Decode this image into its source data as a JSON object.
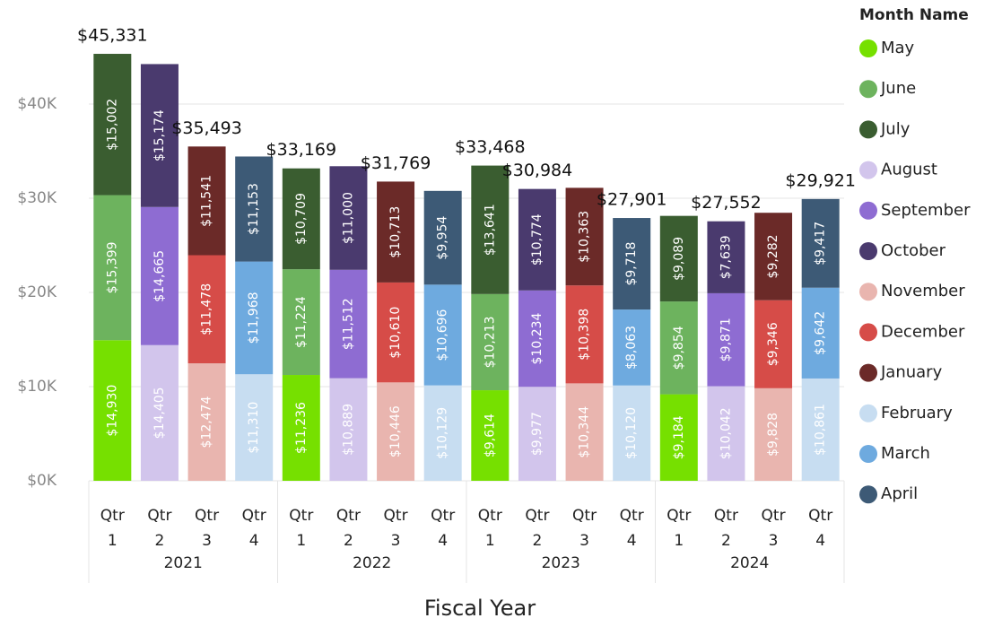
{
  "chart_data": {
    "type": "bar",
    "stacked": true,
    "x_label": "Fiscal Year",
    "legend_title": "Month Name",
    "legend": "right",
    "categories": [
      "Qtr 1",
      "Qtr 2",
      "Qtr 3",
      "Qtr 4",
      "Qtr 1",
      "Qtr 2",
      "Qtr 3",
      "Qtr 4",
      "Qtr 1",
      "Qtr 2",
      "Qtr 3",
      "Qtr 4",
      "Qtr 1",
      "Qtr 2",
      "Qtr 3",
      "Qtr 4"
    ],
    "category_groups": [
      "2021",
      "2022",
      "2023",
      "2024"
    ],
    "ylim": [
      0,
      48000
    ],
    "yticks": [
      {
        "value": 0,
        "label": "$0K"
      },
      {
        "value": 10000,
        "label": "$10K"
      },
      {
        "value": 20000,
        "label": "$20K"
      },
      {
        "value": 30000,
        "label": "$30K"
      },
      {
        "value": 40000,
        "label": "$40K"
      }
    ],
    "grid": true,
    "series": [
      {
        "name": "May",
        "color": "#76e000",
        "values": [
          14930,
          null,
          null,
          null,
          11236,
          null,
          null,
          null,
          9614,
          null,
          null,
          null,
          9184,
          null,
          null,
          null
        ],
        "value_labels": [
          "$14,930",
          null,
          null,
          null,
          "$11,236",
          null,
          null,
          null,
          "$9,614",
          null,
          null,
          null,
          "$9,184",
          null,
          null,
          null
        ]
      },
      {
        "name": "June",
        "color": "#6db35e",
        "values": [
          15399,
          null,
          null,
          null,
          11224,
          null,
          null,
          null,
          10213,
          null,
          null,
          null,
          9854,
          null,
          null,
          null
        ],
        "value_labels": [
          "$15,399",
          null,
          null,
          null,
          "$11,224",
          null,
          null,
          null,
          "$10,213",
          null,
          null,
          null,
          "$9,854",
          null,
          null,
          null
        ]
      },
      {
        "name": "July",
        "color": "#3a5d30",
        "values": [
          15002,
          null,
          null,
          null,
          10709,
          null,
          null,
          null,
          13641,
          null,
          null,
          null,
          9089,
          null,
          null,
          null
        ],
        "value_labels": [
          "$15,002",
          null,
          null,
          null,
          "$10,709",
          null,
          null,
          null,
          "$13,641",
          null,
          null,
          null,
          "$9,089",
          null,
          null,
          null
        ]
      },
      {
        "name": "August",
        "color": "#d2c5ec",
        "values": [
          null,
          14405,
          null,
          null,
          null,
          10889,
          null,
          null,
          null,
          9977,
          null,
          null,
          null,
          10042,
          null,
          null
        ],
        "value_labels": [
          null,
          "$14,405",
          null,
          null,
          null,
          "$10,889",
          null,
          null,
          null,
          "$9,977",
          null,
          null,
          null,
          "$10,042",
          null,
          null
        ]
      },
      {
        "name": "September",
        "color": "#8e6cd2",
        "values": [
          null,
          14665,
          null,
          null,
          null,
          11512,
          null,
          null,
          null,
          10234,
          null,
          null,
          null,
          9871,
          null,
          null
        ],
        "value_labels": [
          null,
          "$14,665",
          null,
          null,
          null,
          "$11,512",
          null,
          null,
          null,
          "$10,234",
          null,
          null,
          null,
          "$9,871",
          null,
          null
        ]
      },
      {
        "name": "October",
        "color": "#4a3a6e",
        "values": [
          null,
          15174,
          null,
          null,
          null,
          11000,
          null,
          null,
          null,
          10774,
          null,
          null,
          null,
          7639,
          null,
          null
        ],
        "value_labels": [
          null,
          "$15,174",
          null,
          null,
          null,
          "$11,000",
          null,
          null,
          null,
          "$10,774",
          null,
          null,
          null,
          "$7,639",
          null,
          null
        ]
      },
      {
        "name": "November",
        "color": "#e9b5af",
        "values": [
          null,
          null,
          12474,
          null,
          null,
          null,
          10446,
          null,
          null,
          null,
          10344,
          null,
          null,
          null,
          9828,
          null
        ],
        "value_labels": [
          null,
          null,
          "$12,474",
          null,
          null,
          null,
          "$10,446",
          null,
          null,
          null,
          "$10,344",
          null,
          null,
          null,
          "$9,828",
          null
        ]
      },
      {
        "name": "December",
        "color": "#d64c48",
        "values": [
          null,
          null,
          11478,
          null,
          null,
          null,
          10610,
          null,
          null,
          null,
          10398,
          null,
          null,
          null,
          9346,
          null
        ],
        "value_labels": [
          null,
          null,
          "$11,478",
          null,
          null,
          null,
          "$10,610",
          null,
          null,
          null,
          "$10,398",
          null,
          null,
          null,
          "$9,346",
          null
        ]
      },
      {
        "name": "January",
        "color": "#6b2a28",
        "values": [
          null,
          null,
          11541,
          null,
          null,
          null,
          10713,
          null,
          null,
          null,
          10363,
          null,
          null,
          null,
          9282,
          null
        ],
        "value_labels": [
          null,
          null,
          "$11,541",
          null,
          null,
          null,
          "$10,713",
          null,
          null,
          null,
          "$10,363",
          null,
          null,
          null,
          "$9,282",
          null
        ]
      },
      {
        "name": "February",
        "color": "#c7ddf1",
        "values": [
          null,
          null,
          null,
          11310,
          null,
          null,
          null,
          10129,
          null,
          null,
          null,
          10120,
          null,
          null,
          null,
          10861
        ],
        "value_labels": [
          null,
          null,
          null,
          "$11,310",
          null,
          null,
          null,
          "$10,129",
          null,
          null,
          null,
          "$10,120",
          null,
          null,
          null,
          "$10,861"
        ]
      },
      {
        "name": "March",
        "color": "#6eaadf",
        "values": [
          null,
          null,
          null,
          11968,
          null,
          null,
          null,
          10696,
          null,
          null,
          null,
          8063,
          null,
          null,
          null,
          9642
        ],
        "value_labels": [
          null,
          null,
          null,
          "$11,968",
          null,
          null,
          null,
          "$10,696",
          null,
          null,
          null,
          "$8,063",
          null,
          null,
          null,
          "$9,642"
        ]
      },
      {
        "name": "April",
        "color": "#3d5a76",
        "values": [
          null,
          null,
          null,
          11153,
          null,
          null,
          null,
          9954,
          null,
          null,
          null,
          9718,
          null,
          null,
          null,
          9417
        ],
        "value_labels": [
          null,
          null,
          null,
          "$11,153",
          null,
          null,
          null,
          "$9,954",
          null,
          null,
          null,
          "$9,718",
          null,
          null,
          null,
          "$9,417"
        ]
      }
    ],
    "totals": [
      45331,
      null,
      35493,
      null,
      33169,
      null,
      31769,
      null,
      33468,
      30984,
      null,
      27901,
      null,
      27552,
      null,
      29921
    ],
    "total_labels": [
      "$45,331",
      null,
      "$35,493",
      null,
      "$33,169",
      null,
      "$31,769",
      null,
      "$33,468",
      "$30,984",
      null,
      "$27,901",
      null,
      "$27,552",
      null,
      "$29,921"
    ]
  }
}
